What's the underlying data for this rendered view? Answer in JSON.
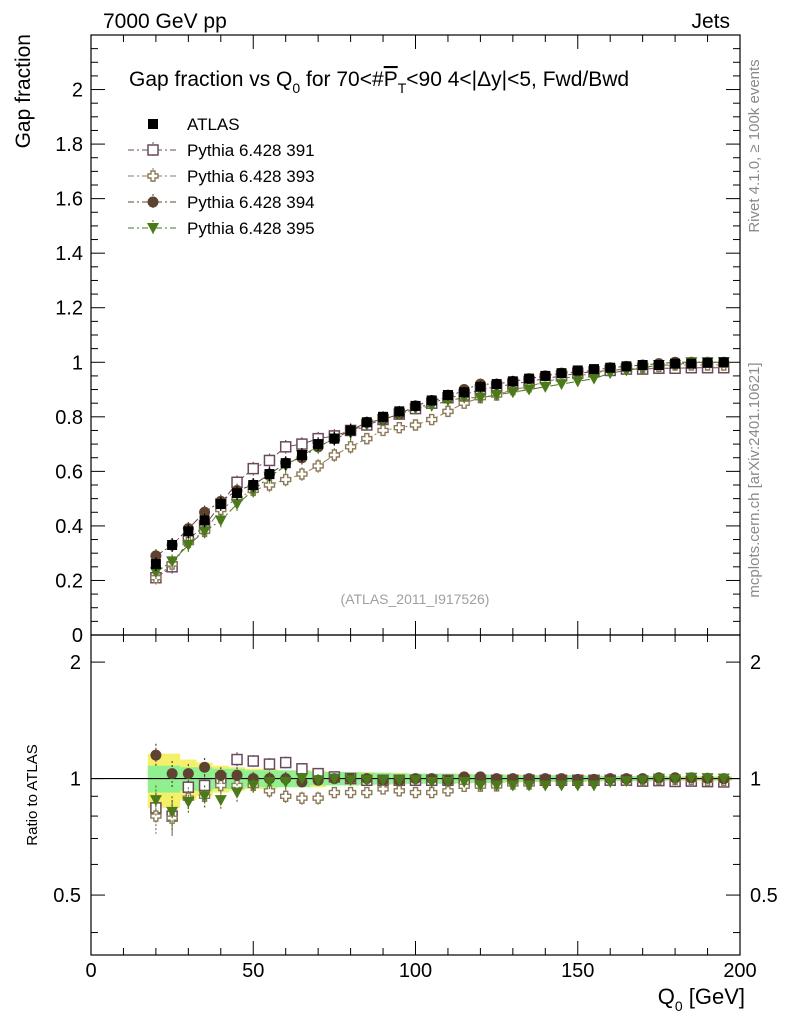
{
  "header": {
    "energy_label": "7000 GeV pp",
    "category_label": "Jets",
    "rivet_label": "Rivet 4.1.0, ≥ 100k events",
    "mcplots_label": "mcplots.cern.ch [arXiv:2401.10621]",
    "analysis_id": "(ATLAS_2011_I917526)"
  },
  "colors": {
    "atlas": "#000000",
    "p391": "#6b4a5e",
    "p393": "#8c7a58",
    "p394": "#5e4430",
    "p395": "#4a7a1a",
    "band_green": "#90f090",
    "band_yellow": "#f5f06a"
  },
  "chart_data": [
    {
      "type": "scatter",
      "title": "Gap fraction vs Q0 for 70<#PT<90  4<|Δy|<5, Fwd/Bwd",
      "title_parts": {
        "a": "Gap fraction vs Q",
        "a_sub": "0",
        "b": " for 70<#",
        "c": "P",
        "c_sub": "T",
        "d": "<90  4<|Δy|<5, Fwd/Bwd"
      },
      "ylabel": "Gap fraction",
      "xlim": [
        0,
        200
      ],
      "ylim": [
        0,
        2.2
      ],
      "yticks": [
        0,
        0.2,
        0.4,
        0.6,
        0.8,
        1,
        1.2,
        1.4,
        1.6,
        1.8,
        2
      ],
      "ytick_labels": [
        "0",
        "0.2",
        "0.4",
        "0.6",
        "0.8",
        "1",
        "1.2",
        "1.4",
        "1.6",
        "1.8",
        "2"
      ],
      "legend_position": "top-left",
      "x": [
        20,
        25,
        30,
        35,
        40,
        45,
        50,
        55,
        60,
        65,
        70,
        75,
        80,
        85,
        90,
        95,
        100,
        105,
        110,
        115,
        120,
        125,
        130,
        135,
        140,
        145,
        150,
        155,
        160,
        165,
        170,
        175,
        180,
        185,
        190,
        195
      ],
      "series": [
        {
          "name": "ATLAS",
          "marker": "filled-square",
          "color_key": "atlas",
          "values": [
            0.26,
            0.33,
            0.38,
            0.42,
            0.48,
            0.52,
            0.55,
            0.59,
            0.63,
            0.66,
            0.7,
            0.72,
            0.75,
            0.78,
            0.8,
            0.82,
            0.84,
            0.86,
            0.88,
            0.89,
            0.91,
            0.92,
            0.93,
            0.94,
            0.95,
            0.96,
            0.97,
            0.975,
            0.98,
            0.985,
            0.99,
            0.99,
            0.995,
            0.995,
            0.998,
            1.0
          ]
        },
        {
          "name": "Pythia 6.428 391",
          "marker": "open-square",
          "color_key": "p391",
          "values": [
            0.21,
            0.25,
            0.35,
            0.4,
            0.48,
            0.56,
            0.61,
            0.64,
            0.69,
            0.7,
            0.72,
            0.73,
            0.75,
            0.77,
            0.79,
            0.81,
            0.83,
            0.85,
            0.87,
            0.88,
            0.9,
            0.91,
            0.92,
            0.93,
            0.94,
            0.95,
            0.96,
            0.965,
            0.97,
            0.975,
            0.975,
            0.978,
            0.978,
            0.98,
            0.98,
            0.98
          ]
        },
        {
          "name": "Pythia 6.428 393",
          "marker": "open-cross",
          "color_key": "p393",
          "values": [
            0.21,
            0.26,
            0.34,
            0.38,
            0.46,
            0.5,
            0.53,
            0.55,
            0.57,
            0.59,
            0.62,
            0.66,
            0.69,
            0.72,
            0.75,
            0.76,
            0.77,
            0.79,
            0.82,
            0.85,
            0.87,
            0.88,
            0.9,
            0.91,
            0.93,
            0.94,
            0.95,
            0.96,
            0.97,
            0.975,
            0.98,
            0.985,
            0.99,
            0.99,
            0.99,
            0.99
          ]
        },
        {
          "name": "Pythia 6.428 394",
          "marker": "filled-circle",
          "color_key": "p394",
          "values": [
            0.29,
            0.33,
            0.39,
            0.45,
            0.49,
            0.53,
            0.55,
            0.59,
            0.63,
            0.65,
            0.69,
            0.72,
            0.75,
            0.78,
            0.79,
            0.81,
            0.84,
            0.86,
            0.87,
            0.9,
            0.92,
            0.92,
            0.93,
            0.94,
            0.95,
            0.96,
            0.965,
            0.97,
            0.98,
            0.985,
            0.99,
            0.995,
            1.0,
            1.0,
            1.0,
            1.0
          ]
        },
        {
          "name": "Pythia 6.428 395",
          "marker": "filled-triangle-down",
          "color_key": "p395",
          "values": [
            0.23,
            0.27,
            0.33,
            0.38,
            0.42,
            0.48,
            0.53,
            0.58,
            0.62,
            0.66,
            0.69,
            0.72,
            0.74,
            0.77,
            0.79,
            0.81,
            0.83,
            0.84,
            0.86,
            0.87,
            0.87,
            0.88,
            0.89,
            0.9,
            0.91,
            0.92,
            0.93,
            0.94,
            0.96,
            0.97,
            0.98,
            0.99,
            0.99,
            1.0,
            1.0,
            1.0
          ]
        }
      ],
      "errors": [
        0.025,
        0.025,
        0.025,
        0.025,
        0.025,
        0.025,
        0.025,
        0.025,
        0.025,
        0.025,
        0.025,
        0.025,
        0.025,
        0.02,
        0.02,
        0.02,
        0.02,
        0.02,
        0.02,
        0.02,
        0.02,
        0.02,
        0.02,
        0.015,
        0.015,
        0.015,
        0.015,
        0.01,
        0.01,
        0.01,
        0.01,
        0.01,
        0.01,
        0.01,
        0.01,
        0.01
      ]
    },
    {
      "type": "scatter",
      "ylabel": "Ratio to ATLAS",
      "xlabel": "Q0 [GeV]",
      "xlabel_parts": {
        "a": "Q",
        "a_sub": "0",
        "b": " [GeV]"
      },
      "xlim": [
        0,
        200
      ],
      "ylim": [
        0.35,
        2.35
      ],
      "log_y": true,
      "xticks": [
        0,
        50,
        100,
        150,
        200
      ],
      "xtick_labels": [
        "0",
        "50",
        "100",
        "150",
        "200"
      ],
      "yticks": [
        0.5,
        1,
        2
      ],
      "ytick_labels": [
        "0.5",
        "1",
        "2"
      ],
      "band_green": [
        0.08,
        0.08,
        0.07,
        0.07,
        0.06,
        0.06,
        0.05,
        0.05,
        0.05,
        0.05,
        0.04,
        0.04,
        0.04,
        0.035,
        0.035,
        0.03,
        0.03,
        0.03,
        0.03,
        0.025,
        0.025,
        0.025,
        0.02,
        0.02,
        0.02,
        0.02,
        0.02,
        0.015,
        0.015,
        0.015,
        0.015,
        0.015,
        0.01,
        0.01,
        0.01,
        0.01
      ],
      "band_yellow": [
        0.16,
        0.16,
        0.12,
        0.1,
        0.08,
        0.07,
        0.06,
        0.06,
        0.05,
        0.05,
        0.05,
        0.04,
        0.04,
        0.04,
        0.035,
        0.035,
        0.03,
        0.03,
        0.03,
        0.03,
        0.025,
        0.025,
        0.025,
        0.02,
        0.02,
        0.02,
        0.02,
        0.02,
        0.015,
        0.015,
        0.015,
        0.015,
        0.015,
        0.015,
        0.015,
        0.015
      ],
      "series": [
        {
          "name": "Pythia 6.428 391",
          "values": [
            0.84,
            0.8,
            0.95,
            0.96,
            1.0,
            1.12,
            1.11,
            1.09,
            1.1,
            1.06,
            1.03,
            1.01,
            1.0,
            0.99,
            0.99,
            0.99,
            0.99,
            0.99,
            0.99,
            0.99,
            0.99,
            0.99,
            0.99,
            0.99,
            0.99,
            0.99,
            0.99,
            0.99,
            0.99,
            0.99,
            0.985,
            0.988,
            0.983,
            0.985,
            0.982,
            0.98
          ]
        },
        {
          "name": "Pythia 6.428 393",
          "values": [
            0.8,
            0.79,
            0.89,
            0.9,
            0.96,
            0.96,
            0.96,
            0.93,
            0.9,
            0.89,
            0.89,
            0.92,
            0.92,
            0.92,
            0.94,
            0.93,
            0.92,
            0.92,
            0.93,
            0.955,
            0.956,
            0.957,
            0.968,
            0.968,
            0.979,
            0.979,
            0.979,
            0.985,
            0.99,
            0.99,
            0.99,
            0.995,
            0.995,
            0.995,
            0.99,
            0.99
          ]
        },
        {
          "name": "Pythia 6.428 394",
          "values": [
            1.15,
            1.03,
            1.03,
            1.07,
            1.02,
            1.02,
            1.0,
            1.0,
            1.0,
            0.98,
            0.99,
            1.0,
            1.0,
            1.0,
            0.99,
            0.99,
            1.0,
            1.0,
            0.99,
            1.01,
            1.01,
            1.0,
            1.0,
            1.0,
            1.0,
            1.0,
            0.995,
            0.995,
            1.0,
            1.0,
            1.0,
            1.005,
            1.005,
            1.005,
            1.002,
            1.0
          ]
        },
        {
          "name": "Pythia 6.428 395",
          "values": [
            0.88,
            0.82,
            0.87,
            0.9,
            0.88,
            0.92,
            0.96,
            0.98,
            0.98,
            1.0,
            0.99,
            1.0,
            0.99,
            0.99,
            0.99,
            0.99,
            0.99,
            0.98,
            0.98,
            0.98,
            0.96,
            0.96,
            0.96,
            0.96,
            0.96,
            0.96,
            0.96,
            0.96,
            0.98,
            0.985,
            0.99,
            1.0,
            0.995,
            1.005,
            1.002,
            1.0
          ]
        }
      ],
      "errors": [
        0.08,
        0.08,
        0.06,
        0.06,
        0.05,
        0.05,
        0.04,
        0.04,
        0.04,
        0.035,
        0.035,
        0.03,
        0.03,
        0.03,
        0.03,
        0.025,
        0.025,
        0.025,
        0.02,
        0.02,
        0.02,
        0.02,
        0.02,
        0.02,
        0.015,
        0.015,
        0.015,
        0.015,
        0.015,
        0.01,
        0.01,
        0.01,
        0.01,
        0.01,
        0.01,
        0.01
      ]
    }
  ]
}
